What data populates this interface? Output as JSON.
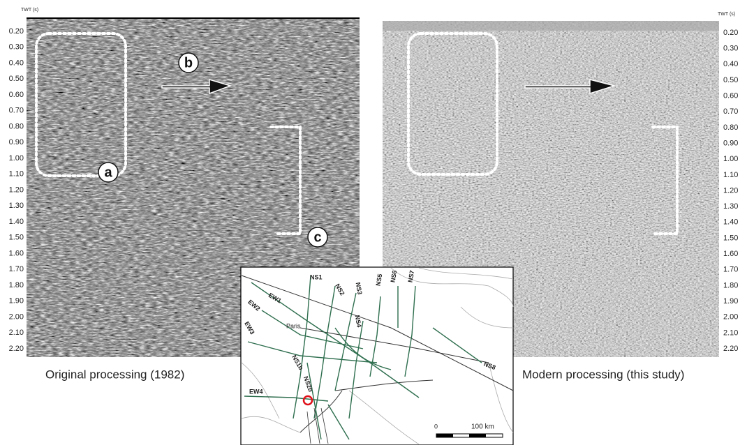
{
  "left_panel": {
    "axis_title": "TWT (s)",
    "ticks": [
      "0.20",
      "0.30",
      "0.40",
      "0.50",
      "0.60",
      "0.70",
      "0.80",
      "0.90",
      "1.00",
      "1.10",
      "1.20",
      "1.30",
      "1.40",
      "1.50",
      "1.60",
      "1.70",
      "1.80",
      "1.90",
      "2.00",
      "2.10",
      "2.20"
    ],
    "labels": {
      "a": "a",
      "b": "b",
      "c": "c"
    },
    "caption": "Original processing (1982)"
  },
  "right_panel": {
    "axis_title": "TWT (s)",
    "ticks": [
      "0.20",
      "0.30",
      "0.40",
      "0.50",
      "0.60",
      "0.70",
      "0.80",
      "0.90",
      "1.00",
      "1.10",
      "1.20",
      "1.30",
      "1.40",
      "1.50",
      "1.60",
      "1.70",
      "1.80",
      "1.90",
      "2.00",
      "2.10",
      "2.20"
    ],
    "caption": "Modern processing (this study)"
  },
  "map": {
    "lines": [
      "NS1",
      "NS2",
      "NS3",
      "NS4",
      "NS5",
      "NS6",
      "NS7",
      "NS8",
      "EW1",
      "EW2",
      "EW3",
      "EW4",
      "NS1b",
      "NS2b"
    ],
    "city": "Paris",
    "scale": {
      "start": "0",
      "end": "100 km"
    }
  }
}
